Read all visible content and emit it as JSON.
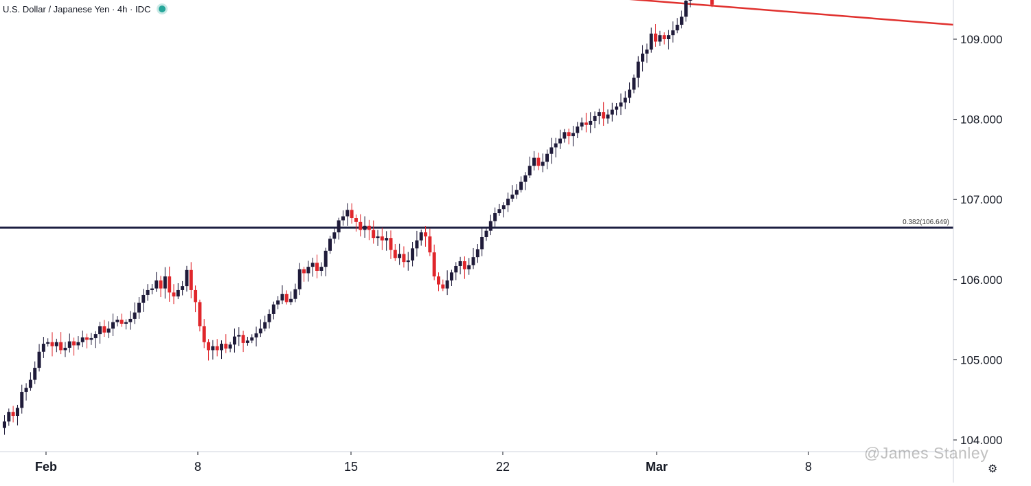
{
  "header": {
    "title": "U.S. Dollar / Japanese Yen · 4h · IDC",
    "status_icon": "live-status-dot"
  },
  "watermark": "@James Stanley",
  "settings_icon": "gear-icon",
  "colors": {
    "up": "#1f1b3a",
    "down": "#e0262b",
    "resistance": "#e0312e",
    "support": "#1b1e40",
    "axis": "#131722"
  },
  "chart_data": {
    "type": "candlestick",
    "symbol": "U.S. Dollar / Japanese Yen",
    "interval": "4h",
    "source": "IDC",
    "x_tick_labels": [
      "Feb",
      "8",
      "15",
      "22",
      "Mar",
      "8"
    ],
    "y_tick_labels": [
      "104.000",
      "105.000",
      "106.000",
      "107.000",
      "108.000",
      "109.000"
    ],
    "ylim": [
      103.85,
      110.1
    ],
    "horizontal_line": {
      "label": "0.382(106.649)",
      "value": 106.649
    },
    "trendline": {
      "start": 110.12,
      "end": 109.18
    },
    "series": [
      {
        "start": 104.15,
        "steps": [
          0.08,
          0.12,
          -0.05,
          0.1,
          0.2,
          0.05,
          0.1,
          0.15,
          0.2,
          0.1,
          0.02,
          -0.05,
          0.05,
          -0.1,
          0.03,
          0.08,
          -0.05,
          0.04,
          0.06,
          -0.03,
          0.02,
          0.05,
          0.1,
          -0.08,
          0.05,
          0.08,
          0.03,
          -0.05,
          0.02,
          0.04,
          0.08,
          0.12,
          0.1,
          0.06,
          0.02,
          0.1,
          -0.1,
          0.15,
          -0.2,
          -0.05,
          0.08,
          0.05,
          0.2,
          -0.25,
          -0.15,
          -0.3,
          -0.2,
          -0.1,
          0.05,
          -0.05,
          0.08,
          -0.06,
          0.05,
          0.1,
          0.02,
          -0.1,
          0.03,
          0.04,
          0.05,
          0.06,
          0.08,
          0.1,
          0.12,
          0.05,
          0.08,
          -0.1,
          0.04,
          0.12,
          0.25,
          -0.05,
          0.08,
          0.05,
          -0.1,
          0.05,
          0.2,
          0.15,
          0.08,
          0.15,
          0.05,
          0.08,
          -0.1,
          -0.05,
          -0.1,
          0.05,
          -0.05,
          -0.1,
          0.02,
          -0.05,
          0.03,
          -0.15,
          -0.1,
          0.05,
          -0.1,
          0.02,
          0.15,
          0.1,
          0.1,
          -0.05,
          -0.2,
          -0.3,
          -0.1,
          -0.05,
          0.1,
          0.1,
          0.08,
          0.06,
          -0.1,
          0.05,
          0.1,
          0.1,
          0.15,
          0.08,
          0.12,
          0.1,
          0.05,
          0.05,
          0.08,
          0.05,
          0.06,
          0.1,
          0.08,
          0.12,
          0.1,
          -0.1,
          0.05,
          0.1,
          0.08,
          0.05,
          0.06,
          0.08,
          -0.05,
          0.04,
          0.08,
          0.05,
          -0.03,
          0.05,
          0.06,
          0.05,
          -0.08,
          0.05,
          0.06,
          0.04,
          0.05,
          0.06,
          0.1,
          0.15,
          0.2,
          0.1,
          0.05,
          0.2,
          -0.1,
          0.08,
          -0.05,
          0.05,
          0.06,
          0.07,
          0.1,
          0.2,
          0.15,
          0.1,
          0.05,
          -0.05,
          -0.1,
          -0.2
        ],
        "candles": 194
      }
    ]
  }
}
